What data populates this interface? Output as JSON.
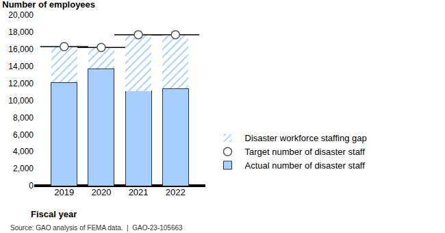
{
  "chart_data": {
    "type": "bar",
    "stacked": true,
    "title": "Number of employees",
    "x_label": "Fiscal year",
    "source": "Source: GAO analysis of FEMA data.  |  GAO-23-105663",
    "categories": [
      "2019",
      "2020",
      "2021",
      "2022"
    ],
    "series": [
      {
        "name": "Actual number of disaster staff",
        "type": "bar",
        "color": "#a6cfff",
        "values": [
          12100,
          13700,
          11100,
          11400
        ]
      },
      {
        "name": "Target number of disaster staff",
        "type": "scatter",
        "marker": "circle",
        "color": "#000000",
        "values": [
          16300,
          16200,
          17700,
          17700
        ]
      },
      {
        "name": "Disaster workforce staffing gap",
        "type": "bar",
        "marker": "hatch",
        "color": "#a6cfff",
        "values": [
          4200,
          2500,
          6600,
          6300
        ]
      }
    ],
    "ylim": [
      0,
      20000
    ],
    "yticks": [
      0,
      {
        "value": 2000,
        "label": "2,000"
      },
      {
        "value": 4000,
        "label": "4,000"
      },
      {
        "value": 6000,
        "label": "6,000"
      },
      {
        "value": 8000,
        "label": "8,000"
      },
      {
        "value": 10000,
        "label": "10,000"
      },
      {
        "value": 12000,
        "label": "12,000"
      },
      {
        "value": 14000,
        "label": "14,000"
      },
      {
        "value": 16000,
        "label": "16,000"
      },
      {
        "value": 18000,
        "label": "18,000"
      },
      {
        "value": 20000,
        "label": "20,000"
      }
    ],
    "grid": false,
    "legend": "right"
  }
}
